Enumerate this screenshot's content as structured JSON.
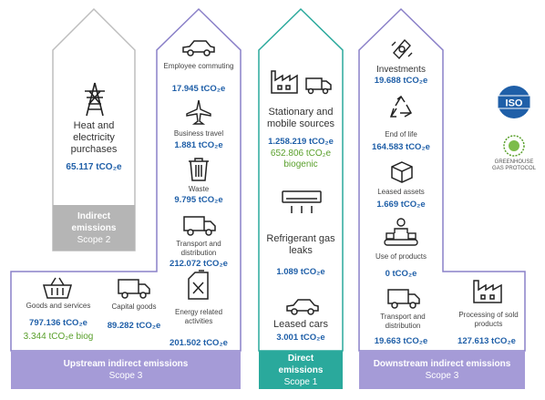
{
  "colors": {
    "scope3_outline": "#7b6fbf",
    "scope3_bar": "#a59bd7",
    "scope2_outline": "#9a9a9a",
    "scope2_bar": "#b5b5b5",
    "scope1_outline": "#2aa99c",
    "scope1_bar": "#2aa99c",
    "value_blue": "#1f5fa8",
    "biogenic_green": "#5aa02c"
  },
  "scope2": {
    "item_label": "Heat and electricity purchases",
    "item_value": "65.117 tCO₂e",
    "bar_line1": "Indirect",
    "bar_line2": "emissions",
    "bar_line3": "Scope 2"
  },
  "upstream": {
    "column_items": [
      {
        "label": "Employee commuting",
        "value": "17.945 tCO₂e"
      },
      {
        "label": "Business travel",
        "value": "1.881 tCO₂e"
      },
      {
        "label": "Waste",
        "value": "9.795 tCO₂e"
      },
      {
        "label": "Transport and distribution",
        "value": "212.072 tCO₂e"
      },
      {
        "label": "Energy related activities",
        "value": "201.502 tCO₂e"
      }
    ],
    "goods": {
      "label": "Goods and services",
      "value": "797.136 tCO₂e",
      "biogenic": "3.344 tCO₂e biog"
    },
    "capital": {
      "label": "Capital goods",
      "value": "89.282 tCO₂e"
    },
    "bar_line1": "Upstream indirect emissions",
    "bar_line2": "Scope 3"
  },
  "direct": {
    "stationary": {
      "label": "Stationary and mobile sources",
      "value": "1.258.219 tCO₂e",
      "biogenic": "652.806 tCO₂e biogenic"
    },
    "refrigerant": {
      "label": "Refrigerant gas leaks",
      "value": "1.089 tCO₂e"
    },
    "cars": {
      "label": "Leased cars",
      "value": "3.001 tCO₂e"
    },
    "bar_line1": "Direct",
    "bar_line2": "emissions",
    "bar_line3": "Scope 1"
  },
  "downstream": {
    "investments": {
      "label": "Investments",
      "value": "19.688 tCO₂e"
    },
    "end_of_life": {
      "label": "End of life",
      "value": "164.583 tCO₂e"
    },
    "leased_assets": {
      "label": "Leased assets",
      "value": "1.669 tCO₂e"
    },
    "use_products": {
      "label": "Use of products",
      "value": "0 tCO₂e"
    },
    "transport": {
      "label": "Transport and distribution",
      "value": "19.663 tCO₂e"
    },
    "processing": {
      "label": "Processing of sold products",
      "value": "127.613 tCO₂e"
    },
    "bar_line1": "Downstream indirect emissions",
    "bar_line2": "Scope 3"
  },
  "logos": {
    "iso": "ISO",
    "ghg_line1": "GREENHOUSE",
    "ghg_line2": "GAS PROTOCOL"
  },
  "icons": [
    "pylon-icon",
    "car-icon",
    "plane-icon",
    "trash-icon",
    "truck-icon",
    "basket-icon",
    "fuel-can-icon",
    "factory-icon",
    "air-conditioner-icon",
    "money-icon",
    "recycle-icon",
    "box-icon",
    "conveyor-icon"
  ]
}
